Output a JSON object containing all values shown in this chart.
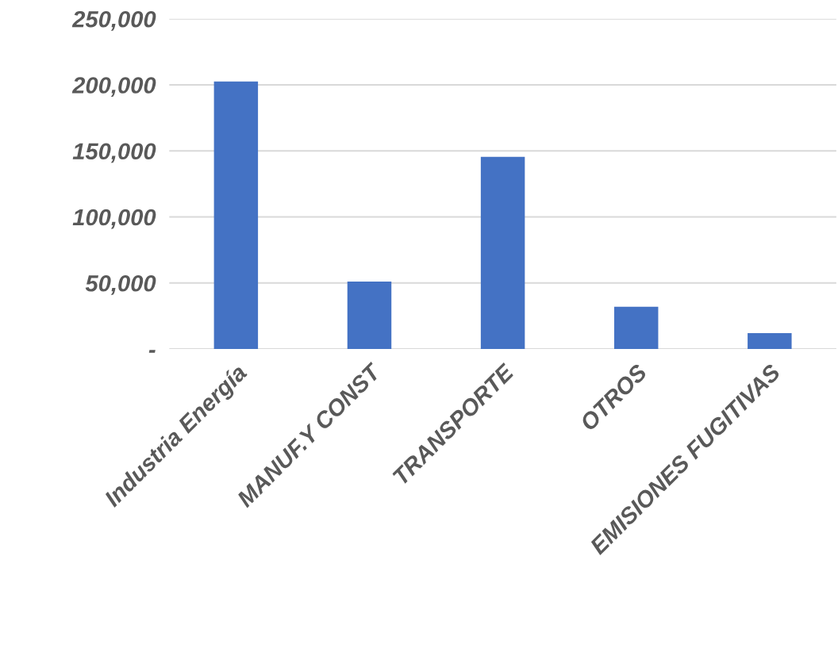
{
  "chart_data": {
    "type": "bar",
    "categories": [
      "Industria Energía",
      "MANUF.Y CONST",
      "TRANSPORTE",
      "OTROS",
      "EMISIONES FUGITIVAS"
    ],
    "values": [
      202500,
      51000,
      145500,
      32000,
      12000
    ],
    "color": "#4472c4",
    "ylim": [
      0,
      250000
    ],
    "yticks": [
      {
        "value": 0,
        "label": "-"
      },
      {
        "value": 50000,
        "label": "50,000"
      },
      {
        "value": 100000,
        "label": "100,000"
      },
      {
        "value": 150000,
        "label": "150,000"
      },
      {
        "value": 200000,
        "label": "200,000"
      },
      {
        "value": 250000,
        "label": "250,000"
      }
    ],
    "grid": "y"
  }
}
